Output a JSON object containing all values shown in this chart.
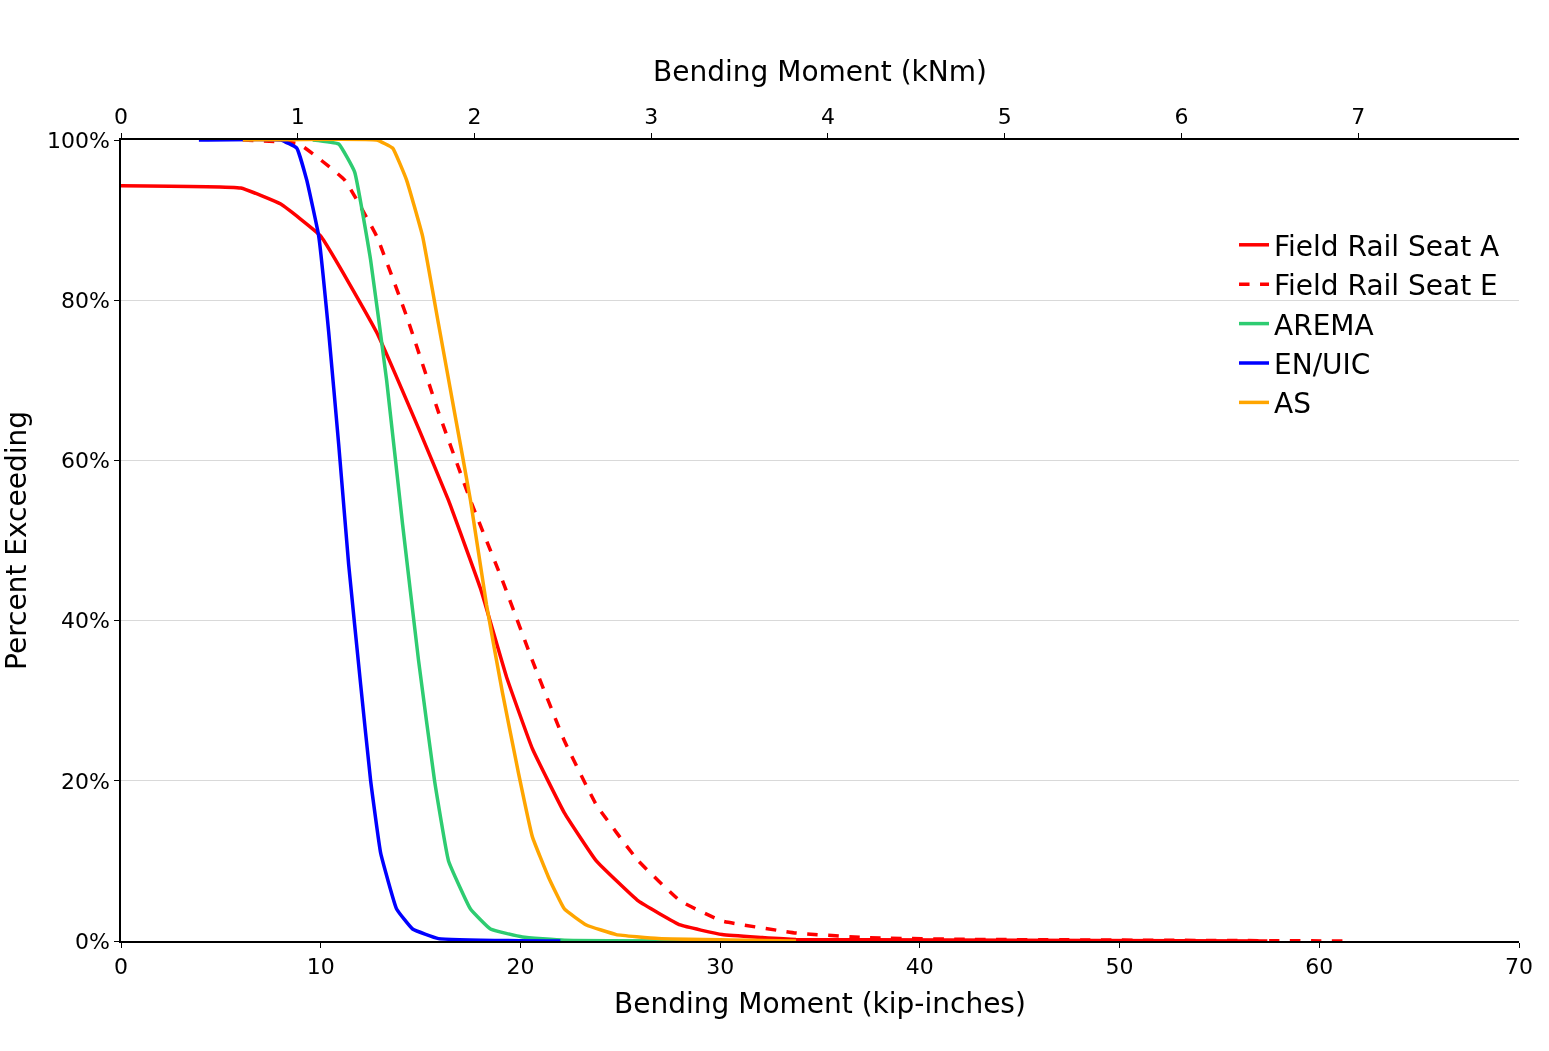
{
  "chart_data": {
    "type": "line",
    "xlabel": "Bending Moment (kip-inches)",
    "ylabel": "Percent Exceeding",
    "x2label": "Bending Moment (kNm)",
    "xlim": [
      0,
      70
    ],
    "xticks": [
      0,
      10,
      20,
      30,
      40,
      50,
      60,
      70
    ],
    "x2lim": [
      0,
      7.91
    ],
    "x2ticks": [
      0,
      1,
      2,
      3,
      4,
      5,
      6,
      7
    ],
    "ylim": [
      0,
      100
    ],
    "yticks": [
      {
        "value": 0,
        "label": "0%"
      },
      {
        "value": 20,
        "label": "20%"
      },
      {
        "value": 40,
        "label": "40%"
      },
      {
        "value": 60,
        "label": "60%"
      },
      {
        "value": 80,
        "label": "80%"
      },
      {
        "value": 100,
        "label": "100%"
      }
    ],
    "grid": "y",
    "legend": "top right",
    "marker": "none",
    "series": [
      {
        "name": "Field Rail Seat A",
        "color": "#ff0000",
        "line_style": "solid",
        "x": [
          0,
          6,
          8,
          10,
          12.8,
          14.9,
          16.4,
          18,
          19.3,
          20.6,
          22.2,
          23.8,
          25.9,
          28,
          30.1,
          33.8,
          57.4
        ],
        "values": [
          94.3,
          94,
          92,
          88,
          76,
          64,
          55,
          44,
          33,
          24,
          16,
          10,
          5,
          2,
          0.8,
          0.2,
          0
        ]
      },
      {
        "name": "Field Rail Seat E",
        "color": "#ff0000",
        "line_style": "dashed",
        "x": [
          6.1,
          8.9,
          11.2,
          12.8,
          14.3,
          15.9,
          17.5,
          19.1,
          20.6,
          22.2,
          23.8,
          25.9,
          28,
          30.1,
          33.8,
          37.4,
          42.7,
          61.6
        ],
        "values": [
          100,
          99.5,
          95,
          88,
          78,
          66,
          55,
          45,
          35,
          25,
          17,
          10,
          5,
          2.5,
          1,
          0.4,
          0.2,
          0
        ]
      },
      {
        "name": "AREMA",
        "color": "#2ecc71",
        "line_style": "solid",
        "x": [
          9.6,
          10.9,
          11.7,
          12.5,
          13.3,
          14.1,
          14.9,
          15.7,
          16.4,
          17.5,
          18.5,
          20.1,
          22.2,
          30.1
        ],
        "values": [
          100,
          99.5,
          96,
          85,
          70,
          52,
          35,
          20,
          10,
          4,
          1.5,
          0.5,
          0.1,
          0
        ]
      },
      {
        "name": "EN/UIC",
        "color": "#0000ff",
        "line_style": "solid",
        "x": [
          3.9,
          8,
          8.8,
          9.3,
          9.9,
          10.4,
          10.9,
          11.4,
          12,
          12.5,
          13,
          13.8,
          14.6,
          15.9,
          22
        ],
        "values": [
          100,
          100,
          99,
          95,
          88,
          76,
          62,
          47,
          32,
          20,
          11,
          4,
          1.5,
          0.3,
          0
        ]
      },
      {
        "name": "AS",
        "color": "#ffa500",
        "line_style": "solid",
        "x": [
          6.1,
          12.8,
          13.6,
          14.3,
          15.1,
          15.9,
          16.7,
          17.5,
          18.3,
          19.1,
          19.9,
          20.6,
          21.4,
          22.2,
          23.3,
          24.8,
          26.9,
          33.8
        ],
        "values": [
          100,
          100,
          99,
          95,
          88,
          77,
          66,
          55,
          42,
          31,
          21,
          13,
          8,
          4,
          2,
          0.8,
          0.3,
          0
        ]
      }
    ]
  }
}
